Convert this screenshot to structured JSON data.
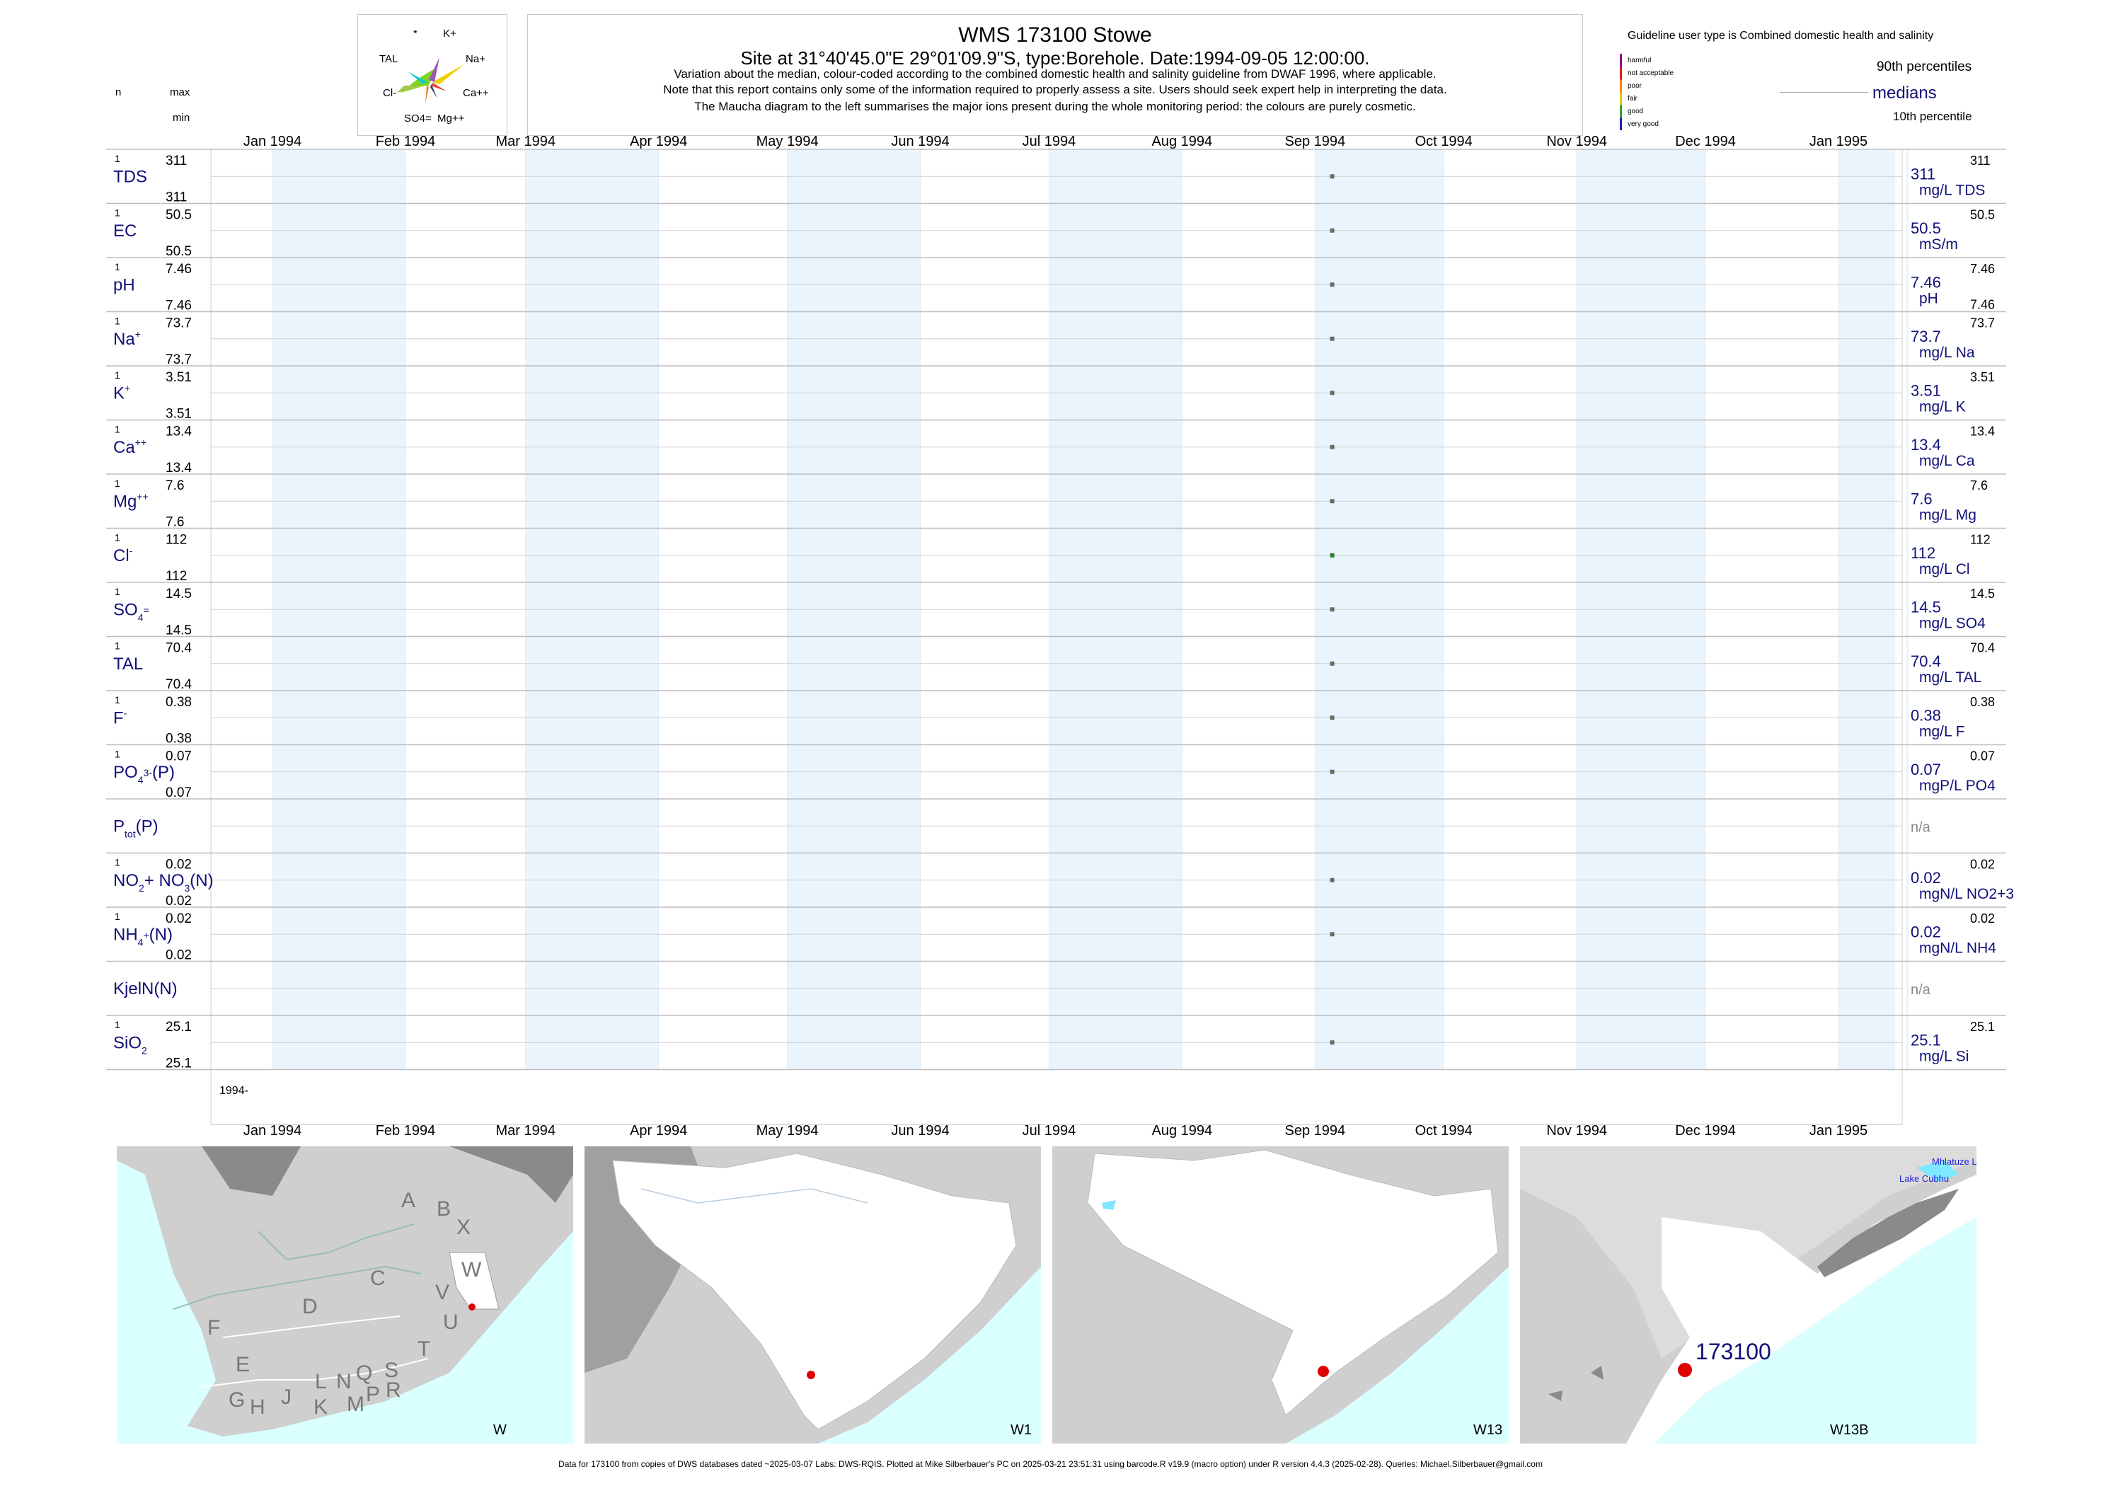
{
  "header": {
    "title": "WMS 173100  Stowe",
    "subtitle": "Site at 31°40'45.0\"E 29°01'09.9\"S, type:Borehole. Date:1994-09-05 12:00:00.",
    "note1": "Variation about the median,  colour-coded according to the combined domestic health and salinity guideline from DWAF 1996, where applicable.",
    "note2": "Note that this report contains only some of the information required to properly assess a site. Users should seek expert help in interpreting the data.",
    "note3": "The Maucha diagram to the left summarises the major ions present during the whole monitoring period: the colours are purely cosmetic."
  },
  "maucha": {
    "labels": [
      "*",
      "K+",
      "TAL",
      "Na+",
      "Cl-",
      "Ca++",
      "SO4=",
      "Mg++"
    ]
  },
  "left_header": {
    "n": "n",
    "max": "max",
    "min": "min"
  },
  "legend": {
    "guideline_user": "Guideline user type is Combined domestic health and salinity",
    "categories": [
      "harmful",
      "not acceptable",
      "poor",
      "fair",
      "good",
      "very good"
    ],
    "colors": [
      "#8b008b",
      "#e31a1c",
      "#ff7f00",
      "#e6c800",
      "#33a02c",
      "#1f1fb4"
    ],
    "p90": "90th percentiles",
    "medians": "medians",
    "p10": "10th percentile"
  },
  "months_top": [
    "Jan 1994",
    "Feb 1994",
    "Mar 1994",
    "Apr 1994",
    "May 1994",
    "Jun 1994",
    "Jul 1994",
    "Aug 1994",
    "Sep 1994",
    "Oct 1994",
    "Nov 1994",
    "Dec 1994",
    "Jan 1995"
  ],
  "months_bottom": [
    "Jan 1994",
    "Feb 1994",
    "Mar 1994",
    "Apr 1994",
    "May 1994",
    "Jun 1994",
    "Jul 1994",
    "Aug 1994",
    "Sep 1994",
    "Oct 1994",
    "Nov 1994",
    "Dec 1994",
    "Jan 1995"
  ],
  "year_label": "1994-",
  "chart_data": {
    "type": "scatter",
    "x_range": [
      "1994-01-01",
      "1995-01-01"
    ],
    "sample_date": "1994-09-05",
    "series": [
      {
        "name": "TDS",
        "n": "1",
        "max": "311",
        "min": "311",
        "value": 311,
        "median": "311",
        "unit": "mg/L TDS",
        "p90": "311",
        "p10": ""
      },
      {
        "name": "EC",
        "n": "1",
        "max": "50.5",
        "min": "50.5",
        "value": 50.5,
        "median": "50.5",
        "unit": "mS/m",
        "p90": "50.5",
        "p10": ""
      },
      {
        "name": "pH",
        "n": "1",
        "max": "7.46",
        "min": "7.46",
        "value": 7.46,
        "median": "7.46",
        "unit": "pH",
        "p90": "7.46",
        "p10": "7.46"
      },
      {
        "name": "Na+",
        "n": "1",
        "max": "73.7",
        "min": "73.7",
        "value": 73.7,
        "median": "73.7",
        "unit": "mg/L Na",
        "p90": "73.7",
        "p10": ""
      },
      {
        "name": "K+",
        "n": "1",
        "max": "3.51",
        "min": "3.51",
        "value": 3.51,
        "median": "3.51",
        "unit": "mg/L K",
        "p90": "3.51",
        "p10": ""
      },
      {
        "name": "Ca++",
        "n": "1",
        "max": "13.4",
        "min": "13.4",
        "value": 13.4,
        "median": "13.4",
        "unit": "mg/L Ca",
        "p90": "13.4",
        "p10": ""
      },
      {
        "name": "Mg++",
        "n": "1",
        "max": "7.6",
        "min": "7.6",
        "value": 7.6,
        "median": "7.6",
        "unit": "mg/L Mg",
        "p90": "7.6",
        "p10": ""
      },
      {
        "name": "Cl-",
        "n": "1",
        "max": "112",
        "min": "112",
        "value": 112,
        "median": "112",
        "unit": "mg/L Cl",
        "p90": "112",
        "p10": ""
      },
      {
        "name": "SO4=",
        "n": "1",
        "max": "14.5",
        "min": "14.5",
        "value": 14.5,
        "median": "14.5",
        "unit": "mg/L SO4",
        "p90": "14.5",
        "p10": ""
      },
      {
        "name": "TAL",
        "n": "1",
        "max": "70.4",
        "min": "70.4",
        "value": 70.4,
        "median": "70.4",
        "unit": "mg/L TAL",
        "p90": "70.4",
        "p10": ""
      },
      {
        "name": "F-",
        "n": "1",
        "max": "0.38",
        "min": "0.38",
        "value": 0.38,
        "median": "0.38",
        "unit": "mg/L F",
        "p90": "0.38",
        "p10": ""
      },
      {
        "name": "PO4(3-)(P)",
        "n": "1",
        "max": "0.07",
        "min": "0.07",
        "value": 0.07,
        "median": "0.07",
        "unit": "mgP/L PO4",
        "p90": "0.07",
        "p10": ""
      },
      {
        "name": "Ptot(P)",
        "n": "",
        "max": "",
        "min": "",
        "value": null,
        "median": "n/a",
        "unit": "",
        "p90": "",
        "p10": ""
      },
      {
        "name": "NO2+NO3(N)",
        "n": "1",
        "max": "0.02",
        "min": "0.02",
        "value": 0.02,
        "median": "0.02",
        "unit": "mgN/L NO2+3",
        "p90": "0.02",
        "p10": ""
      },
      {
        "name": "NH4+(N)",
        "n": "1",
        "max": "0.02",
        "min": "0.02",
        "value": 0.02,
        "median": "0.02",
        "unit": "mgN/L NH4",
        "p90": "0.02",
        "p10": ""
      },
      {
        "name": "KjelN(N)",
        "n": "",
        "max": "",
        "min": "",
        "value": null,
        "median": "n/a",
        "unit": "",
        "p90": "",
        "p10": ""
      },
      {
        "name": "SiO2",
        "n": "1",
        "max": "25.1",
        "min": "25.1",
        "value": 25.1,
        "median": "25.1",
        "unit": "mg/L Si",
        "p90": "25.1",
        "p10": ""
      }
    ]
  },
  "maps": {
    "map1_label": "W",
    "map2_label": "W1",
    "map3_label": "W13",
    "map4_label": "W13B",
    "site_label": "173100",
    "lake1": "Mhlatuze La",
    "lake2": "Lake Cubhu",
    "regions": [
      "A",
      "B",
      "X",
      "W",
      "C",
      "V",
      "D",
      "U",
      "F",
      "T",
      "E",
      "L",
      "N",
      "Q",
      "S",
      "G",
      "H",
      "J",
      "K",
      "M",
      "P",
      "R"
    ]
  },
  "footer": "Data for 173100 from copies of DWS databases dated ~2025-03-07 Labs: DWS-RQIS. Plotted at Mike Silberbauer's PC on 2025-03-21 23:51:31 using barcode.R v19.9 (macro option) under R version 4.4.3 (2025-02-28). Queries: Michael.Silberbauer@gmail.com"
}
